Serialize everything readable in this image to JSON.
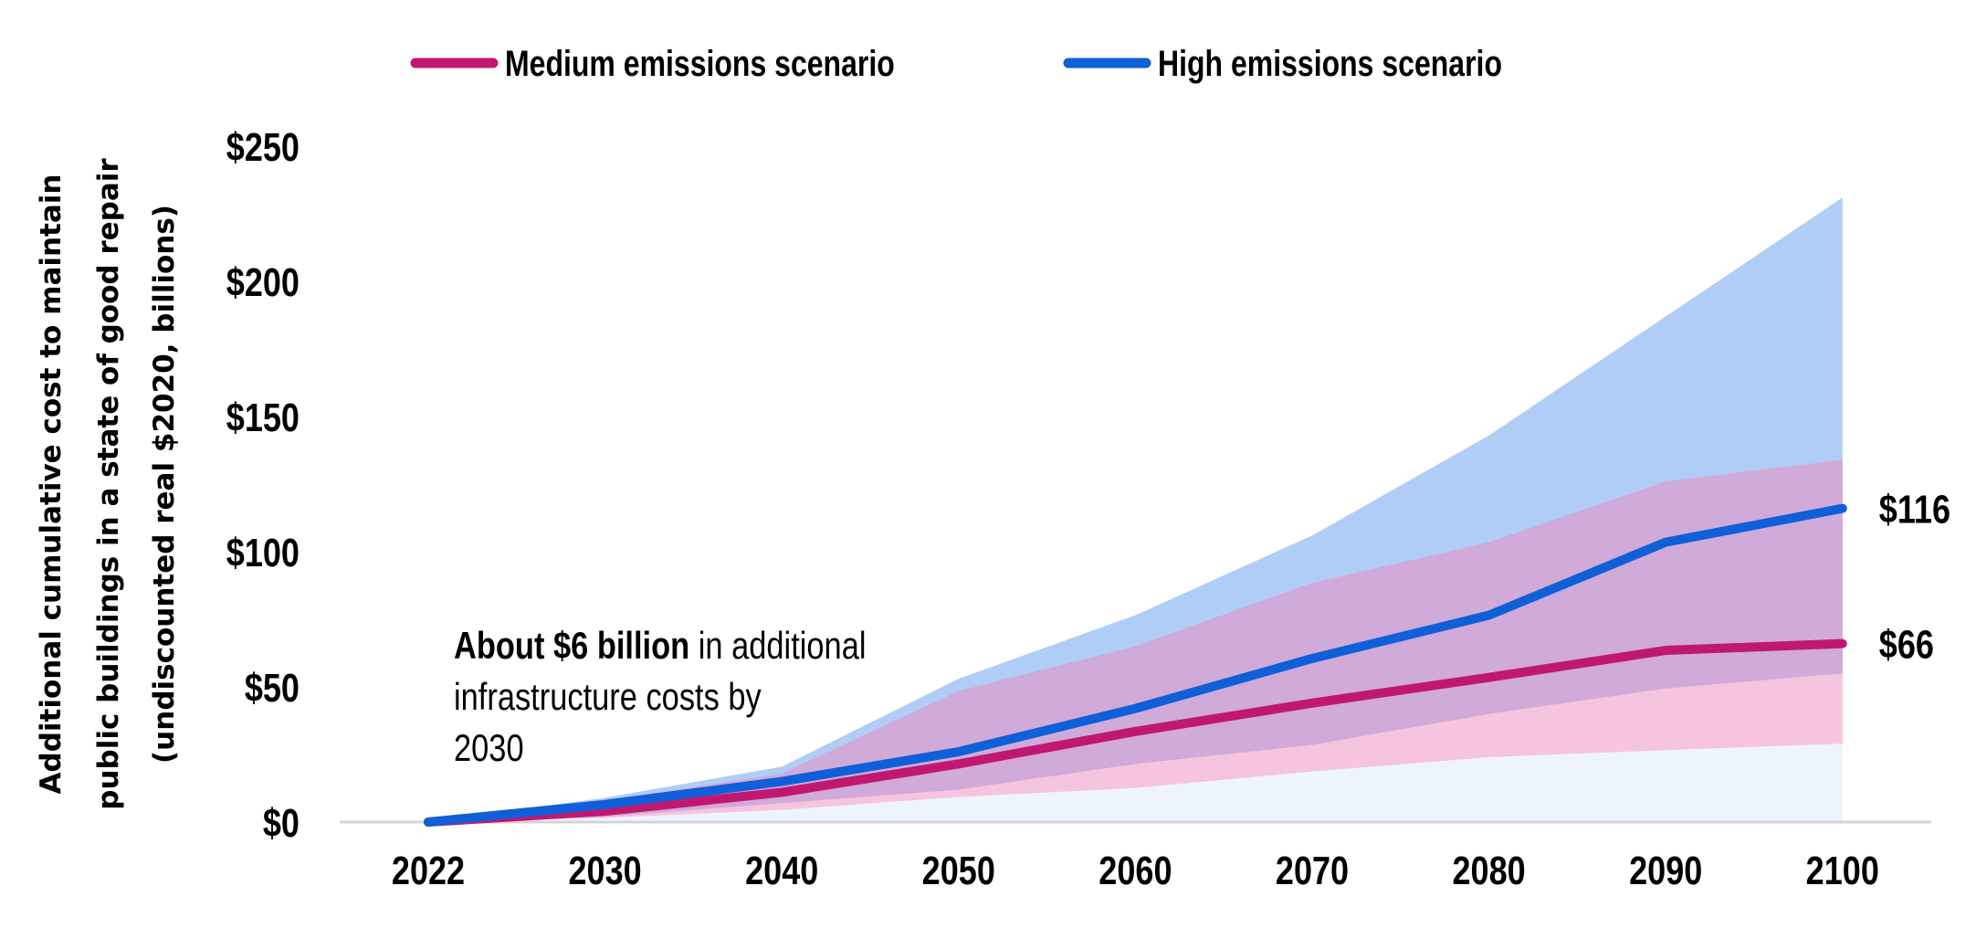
{
  "chart_data": {
    "type": "line",
    "title": "",
    "xlabel": "",
    "ylabel": [
      "Additional cumulative cost to maintain",
      "public buildings in a state of good repair",
      "(undiscounted real $2020, billions)"
    ],
    "ylim": [
      0,
      250
    ],
    "yticks": [
      0,
      50,
      100,
      150,
      200,
      250
    ],
    "ytick_labels": [
      "$0",
      "$50",
      "$100",
      "$150",
      "$200",
      "$250"
    ],
    "categories": [
      "2022",
      "2030",
      "2040",
      "2050",
      "2060",
      "2070",
      "2080",
      "2090",
      "2100"
    ],
    "grid": false,
    "legend_position": "top",
    "series": [
      {
        "name": "Medium emissions scenario",
        "color": "#c0186f",
        "band_color": "#f6c4de",
        "values": [
          0,
          4,
          11,
          21.5,
          33.5,
          44,
          53.5,
          63.5,
          66
        ],
        "lower": [
          0,
          1.5,
          4.5,
          9.3,
          12.6,
          18.7,
          24,
          26.6,
          29
        ],
        "upper": [
          0,
          8,
          18,
          48.5,
          65,
          88.5,
          103.5,
          126,
          134
        ],
        "end_label": "$66"
      },
      {
        "name": "High emissions scenario",
        "color": "#0f5fd8",
        "band_color": "#b0cdf8",
        "values": [
          0,
          6.5,
          15,
          26,
          42,
          60.5,
          76.5,
          103.5,
          116
        ],
        "lower": [
          0,
          2,
          7,
          12,
          21.5,
          28.5,
          40,
          49.4,
          55
        ],
        "upper": [
          0,
          9,
          20.5,
          53,
          76.5,
          106,
          143,
          187,
          231
        ],
        "end_label": "$116"
      }
    ],
    "overlap_color": "#d0aad8",
    "base_color": "#eef4fc",
    "annotation": {
      "bold": "About $6 billion",
      "rest_line1": " in additional",
      "line2": "infrastructure costs by",
      "line3": "2030"
    }
  }
}
